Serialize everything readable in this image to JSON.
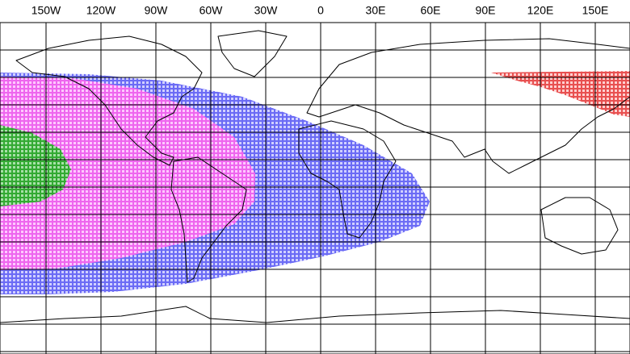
{
  "map": {
    "longitude_labels": [
      "150W",
      "120W",
      "90W",
      "60W",
      "30W",
      "0",
      "30E",
      "60E",
      "90E",
      "120E",
      "150E"
    ]
  }
}
